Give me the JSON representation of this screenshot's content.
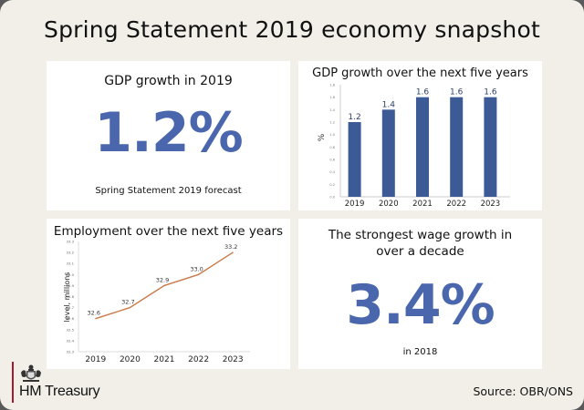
{
  "page": {
    "title": "Spring Statement 2019 economy snapshot",
    "brand": "HM Treasury",
    "brand_icon": "royal-crest-icon",
    "source": "Source: OBR/ONS",
    "colors": {
      "background": "#f2efe8",
      "panel": "#ffffff",
      "accent_blue": "#4a67ad",
      "bar_blue": "#3c5a95",
      "line_orange": "#c97a4a",
      "brand_red": "#a6192e"
    }
  },
  "gdp_2019": {
    "heading": "GDP growth in 2019",
    "value": "1.2%",
    "caption": "Spring Statement 2019 forecast"
  },
  "wages": {
    "heading_line1": "The strongest wage growth in",
    "heading_line2": "over a decade",
    "value": "3.4%",
    "caption": "in 2018"
  },
  "chart_data": [
    {
      "type": "bar",
      "title": "GDP growth over the next five years",
      "xlabel": "",
      "ylabel": "%",
      "categories": [
        "2019",
        "2020",
        "2021",
        "2022",
        "2023"
      ],
      "values": [
        1.2,
        1.4,
        1.6,
        1.6,
        1.6
      ],
      "data_labels": [
        "1.2",
        "1.4",
        "1.6",
        "1.6",
        "1.6"
      ],
      "ylim": [
        0,
        1.8
      ],
      "yticks": [
        "0.0",
        "0.2",
        "0.4",
        "0.6",
        "0.8",
        "1.0",
        "1.2",
        "1.4",
        "1.6",
        "1.8"
      ],
      "grid": false,
      "legend": "none"
    },
    {
      "type": "line",
      "title": "Employment over the next five years",
      "xlabel": "",
      "ylabel": "level, millions",
      "categories": [
        "2019",
        "2020",
        "2021",
        "2022",
        "2023"
      ],
      "values": [
        32.6,
        32.7,
        32.9,
        33.0,
        33.2
      ],
      "data_labels": [
        "32.6",
        "32.7",
        "32.9",
        "33.0",
        "33.2"
      ],
      "ylim": [
        32.3,
        33.3
      ],
      "yticks": [
        "32.3",
        "32.4",
        "32.5",
        "32.6",
        "32.7",
        "32.8",
        "32.9",
        "33.0",
        "33.1",
        "33.2",
        "33.3"
      ],
      "grid": false,
      "legend": "none"
    }
  ]
}
